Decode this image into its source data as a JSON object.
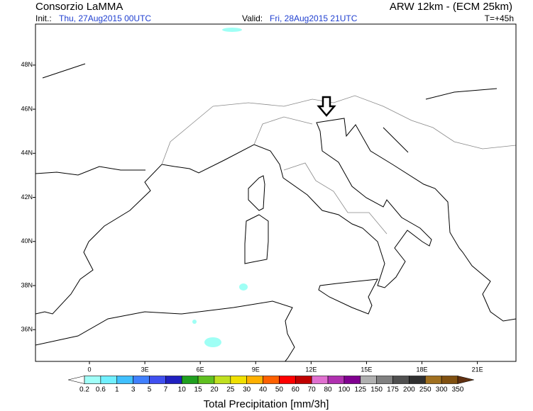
{
  "header": {
    "title": "Consorzio LaMMA",
    "model": "ARW 12km - (ECM 25km)",
    "init_label": "Init.:",
    "init": "Thu, 27Aug2015 00UTC",
    "valid_label": "Valid:",
    "valid": "Fri, 28Aug2015 21UTC",
    "lead": "T=+45h"
  },
  "map": {
    "xlim": [
      -2.92,
      23.09
    ],
    "ylim": [
      34.56,
      49.86
    ],
    "xticks": [
      0,
      {
        "value": 3,
        "label": "3E"
      },
      {
        "value": 6,
        "label": "6E"
      },
      {
        "value": 9,
        "label": "9E"
      },
      {
        "value": 12,
        "label": "12E"
      },
      {
        "value": 15,
        "label": "15E"
      },
      {
        "value": 18,
        "label": "18E"
      },
      {
        "value": 21,
        "label": "21E"
      }
    ],
    "yticks": [
      {
        "value": 36,
        "label": "36N"
      },
      {
        "value": 38,
        "label": "38N"
      },
      {
        "value": 40,
        "label": "40N"
      },
      {
        "value": 42,
        "label": "42N"
      },
      {
        "value": 44,
        "label": "44N"
      },
      {
        "value": 46,
        "label": "46N"
      },
      {
        "value": 48,
        "label": "48N"
      }
    ]
  },
  "legend": {
    "title": "Total Precipitation [mm/3h]",
    "levels": [
      0.2,
      0.6,
      1,
      3,
      5,
      7,
      10,
      15,
      20,
      25,
      30,
      40,
      50,
      60,
      70,
      80,
      100,
      125,
      150,
      175,
      200,
      250,
      300,
      350
    ],
    "colors": [
      "#ffffff",
      "#a0fff8",
      "#70f0ff",
      "#40c0ff",
      "#4080ff",
      "#4050f0",
      "#2020c0",
      "#20a020",
      "#60c020",
      "#c0e020",
      "#f0e000",
      "#ffb000",
      "#ff6000",
      "#ff0000",
      "#c00000",
      "#e070d0",
      "#b030b0",
      "#800090",
      "#b0b0b0",
      "#808080",
      "#505050",
      "#303030",
      "#a07020",
      "#805010",
      "#603010"
    ]
  }
}
